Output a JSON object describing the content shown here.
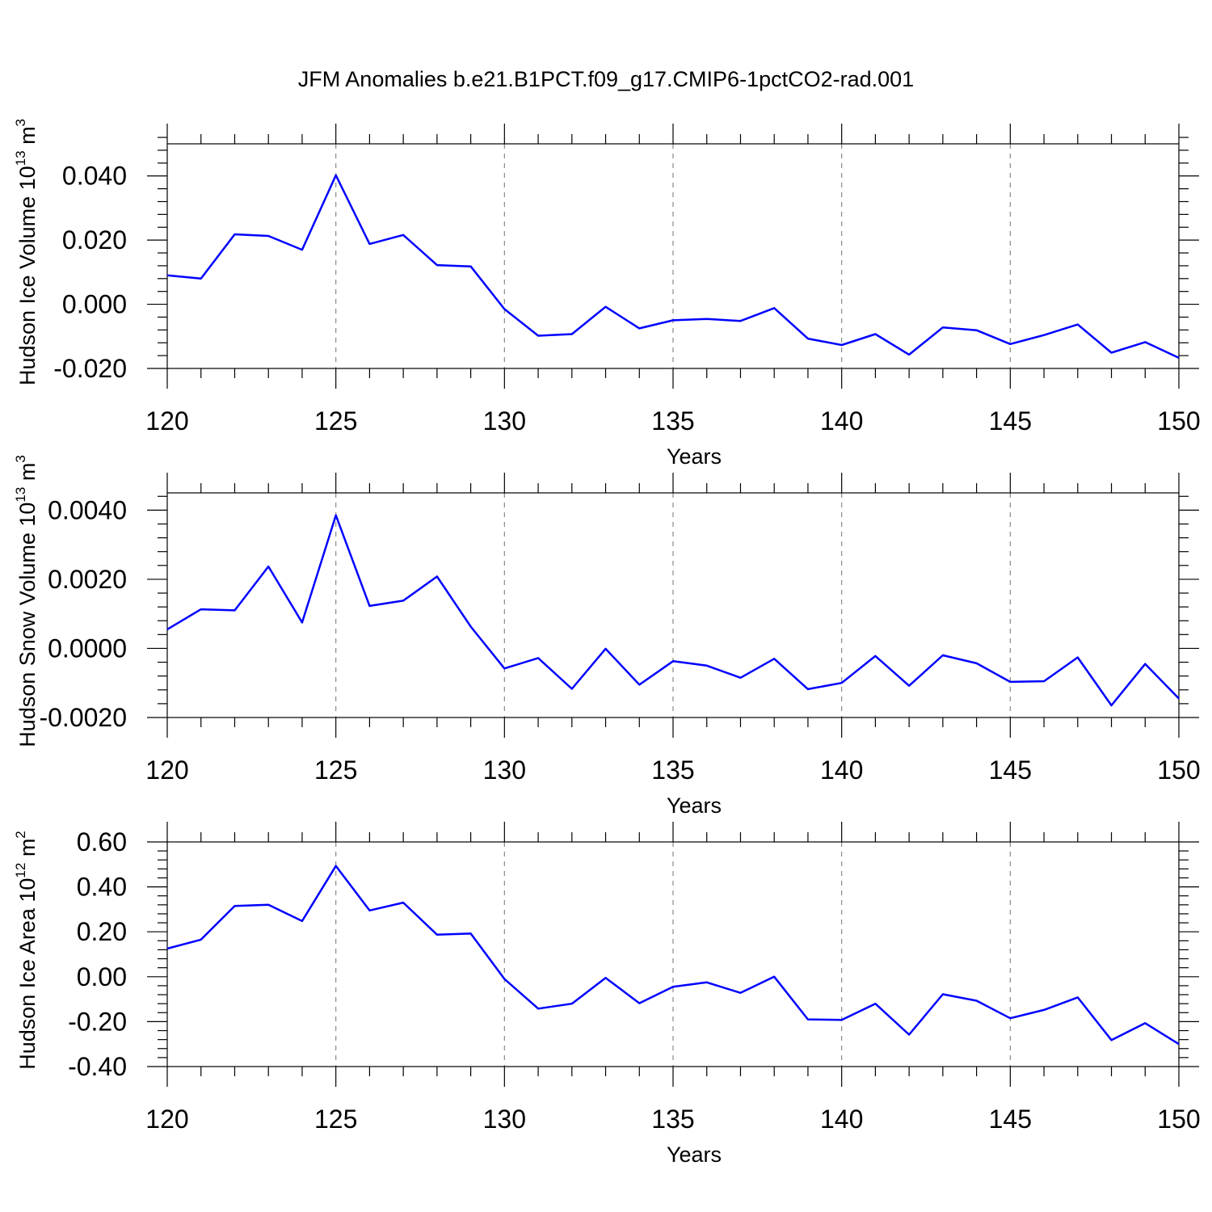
{
  "title": "JFM Anomalies b.e21.B1PCT.f09_g17.CMIP6-1pctCO2-rad.001",
  "colors": {
    "series": "#0000ff",
    "grid": "#888888",
    "frame": "#000000"
  },
  "chart_data": [
    {
      "type": "line",
      "xlabel": "Years",
      "ylabel": {
        "text": "Hudson Ice Volume 10",
        "sup": "13",
        "unit": " m",
        "unit_sup": "3"
      },
      "xlim": [
        120,
        150
      ],
      "ylim": [
        -0.02,
        0.05
      ],
      "xticks": [
        120,
        125,
        130,
        135,
        140,
        145,
        150
      ],
      "xtick_labels": [
        "120",
        "125",
        "130",
        "135",
        "140",
        "145",
        "150"
      ],
      "yticks": [
        -0.02,
        0.0,
        0.02,
        0.04
      ],
      "ytick_labels": [
        "-0.020",
        "0.000",
        "0.020",
        "0.040"
      ],
      "grid_x": "dashed vertical at major x ticks",
      "x": [
        120,
        121,
        122,
        123,
        124,
        125,
        126,
        127,
        128,
        129,
        130,
        131,
        132,
        133,
        134,
        135,
        136,
        137,
        138,
        139,
        140,
        141,
        142,
        143,
        144,
        145,
        146,
        147,
        148,
        149,
        150
      ],
      "y": [
        0.009,
        0.008,
        0.0218,
        0.0213,
        0.017,
        0.0402,
        0.0188,
        0.0216,
        0.0122,
        0.0118,
        -0.0015,
        -0.0098,
        -0.0093,
        -0.0008,
        -0.0075,
        -0.005,
        -0.0046,
        -0.0052,
        -0.0012,
        -0.0107,
        -0.0127,
        -0.0093,
        -0.0157,
        -0.0072,
        -0.0081,
        -0.0124,
        -0.0096,
        -0.0063,
        -0.0151,
        -0.0118,
        -0.0167
      ]
    },
    {
      "type": "line",
      "xlabel": "Years",
      "ylabel": {
        "text": "Hudson Snow Volume 10",
        "sup": "13",
        "unit": " m",
        "unit_sup": "3"
      },
      "xlim": [
        120,
        150
      ],
      "ylim": [
        -0.002,
        0.0045
      ],
      "xticks": [
        120,
        125,
        130,
        135,
        140,
        145,
        150
      ],
      "xtick_labels": [
        "120",
        "125",
        "130",
        "135",
        "140",
        "145",
        "150"
      ],
      "yticks": [
        -0.002,
        0.0,
        0.002,
        0.004
      ],
      "ytick_labels": [
        "-0.0020",
        "0.0000",
        "0.0020",
        "0.0040"
      ],
      "grid_x": "dashed vertical at major x ticks",
      "x": [
        120,
        121,
        122,
        123,
        124,
        125,
        126,
        127,
        128,
        129,
        130,
        131,
        132,
        133,
        134,
        135,
        136,
        137,
        138,
        139,
        140,
        141,
        142,
        143,
        144,
        145,
        146,
        147,
        148,
        149,
        150
      ],
      "y": [
        0.00055,
        0.00113,
        0.0011,
        0.00237,
        0.00075,
        0.00385,
        0.00123,
        0.00138,
        0.00208,
        0.00063,
        -0.00058,
        -0.00028,
        -0.00117,
        -1e-05,
        -0.00105,
        -0.00037,
        -0.0005,
        -0.00085,
        -0.0003,
        -0.00118,
        -0.001,
        -0.00022,
        -0.00108,
        -0.0002,
        -0.00043,
        -0.00097,
        -0.00095,
        -0.00026,
        -0.00165,
        -0.00045,
        -0.00145
      ]
    },
    {
      "type": "line",
      "xlabel": "Years",
      "ylabel": {
        "text": "Hudson Ice Area 10",
        "sup": "12",
        "unit": " m",
        "unit_sup": "2"
      },
      "xlim": [
        120,
        150
      ],
      "ylim": [
        -0.4,
        0.6
      ],
      "xticks": [
        120,
        125,
        130,
        135,
        140,
        145,
        150
      ],
      "xtick_labels": [
        "120",
        "125",
        "130",
        "135",
        "140",
        "145",
        "150"
      ],
      "yticks": [
        -0.4,
        -0.2,
        0.0,
        0.2,
        0.4,
        0.6
      ],
      "ytick_labels": [
        "-0.40",
        "-0.20",
        "0.00",
        "0.20",
        "0.40",
        "0.60"
      ],
      "grid_x": "dashed vertical at major x ticks",
      "x": [
        120,
        121,
        122,
        123,
        124,
        125,
        126,
        127,
        128,
        129,
        130,
        131,
        132,
        133,
        134,
        135,
        136,
        137,
        138,
        139,
        140,
        141,
        142,
        143,
        144,
        145,
        146,
        147,
        148,
        149,
        150
      ],
      "y": [
        0.125,
        0.165,
        0.315,
        0.32,
        0.248,
        0.493,
        0.295,
        0.33,
        0.187,
        0.192,
        -0.01,
        -0.142,
        -0.12,
        -0.005,
        -0.118,
        -0.045,
        -0.025,
        -0.072,
        0.0,
        -0.19,
        -0.192,
        -0.12,
        -0.258,
        -0.078,
        -0.107,
        -0.185,
        -0.148,
        -0.092,
        -0.282,
        -0.207,
        -0.3
      ]
    }
  ]
}
